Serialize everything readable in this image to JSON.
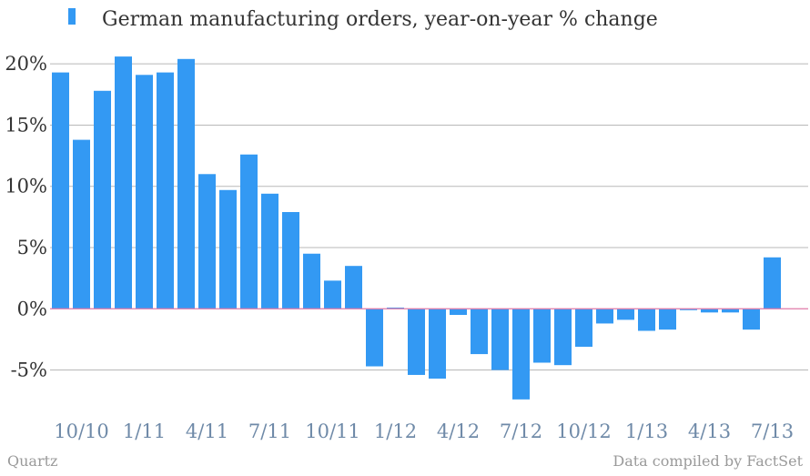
{
  "chart_data": {
    "type": "bar",
    "series": [
      {
        "name": "German manufacturing orders, year-on-year % change",
        "color": "#3399f3",
        "values": [
          19.3,
          13.8,
          17.8,
          20.6,
          19.1,
          19.3,
          20.4,
          11.0,
          9.7,
          12.6,
          9.4,
          7.9,
          4.5,
          2.3,
          3.5,
          -4.7,
          0.1,
          -5.4,
          -5.7,
          -0.5,
          -3.7,
          -5.0,
          -7.4,
          -4.4,
          -4.6,
          -3.1,
          -1.2,
          -0.9,
          -1.8,
          -1.7,
          -0.1,
          -0.3,
          -0.3,
          -1.7,
          4.2
        ]
      }
    ],
    "x_tick_labels": [
      "10/10",
      "1/11",
      "4/11",
      "7/11",
      "10/11",
      "1/12",
      "4/12",
      "7/12",
      "10/12",
      "1/13",
      "4/13",
      "7/13"
    ],
    "y_tick_labels": [
      "-5%",
      "0%",
      "5%",
      "10%",
      "15%",
      "20%"
    ],
    "y_ticks": [
      -5,
      0,
      5,
      10,
      15,
      20
    ],
    "ylim": [
      -8.6,
      21.5
    ],
    "zero_line_color": "#e07aa8",
    "grid": true,
    "legend_position": "top-left",
    "xlabel": "",
    "ylabel": ""
  },
  "footer": {
    "source_left": "Quartz",
    "source_right": "Data compiled by FactSet"
  }
}
